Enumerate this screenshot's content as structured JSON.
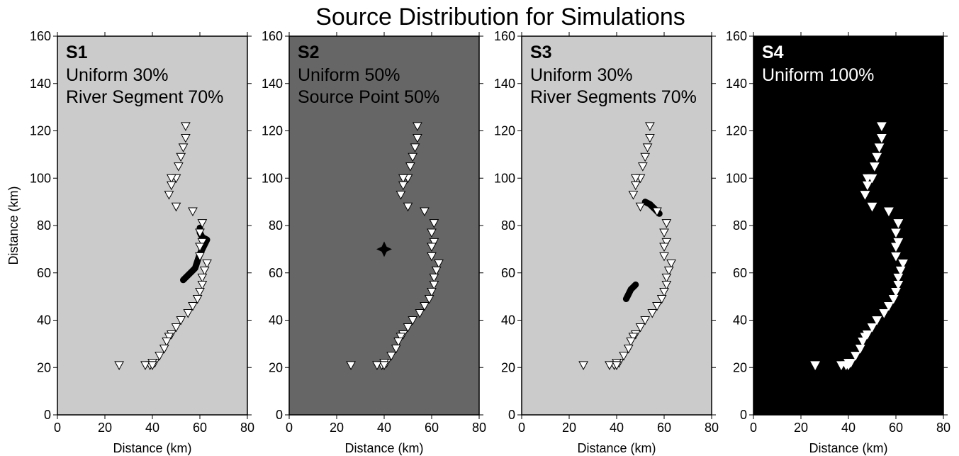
{
  "chart_data": {
    "type": "scatter",
    "title": "Source Distribution for Simulations",
    "xlabel": "Distance (km)",
    "ylabel": "Distance (km)",
    "xlim": [
      0,
      80
    ],
    "ylim": [
      0,
      160
    ],
    "xticks": [
      0,
      20,
      40,
      60,
      80
    ],
    "yticks": [
      0,
      20,
      40,
      60,
      80,
      100,
      120,
      140,
      160
    ],
    "stations": {
      "marker": "inverted-triangle",
      "x": [
        54,
        54,
        53,
        52,
        51,
        50,
        48,
        48,
        47,
        50,
        57,
        61,
        60,
        61,
        60,
        60,
        63,
        62,
        61,
        61,
        60,
        59,
        57,
        55,
        52,
        50,
        48,
        47,
        46,
        45,
        43,
        41,
        40,
        39,
        37,
        40,
        26
      ],
      "y": [
        122,
        117,
        113,
        109,
        105,
        100,
        100,
        97,
        93,
        88,
        86,
        81,
        77,
        73,
        71,
        67,
        64,
        61,
        58,
        55,
        52,
        49,
        46,
        43,
        40,
        37,
        34,
        33,
        31,
        28,
        25,
        22,
        22,
        21,
        21,
        21,
        21
      ]
    },
    "panels": [
      {
        "label": "S1",
        "lines": [
          "Uniform 30%",
          "River Segment 70%"
        ],
        "background": "#cbcbcb",
        "text_color": "#000000",
        "station_fill": "#ffffff",
        "station_stroke": "#000000",
        "source_segments": [
          [
            [
              60,
              79
            ],
            [
              60,
              77
            ],
            [
              61,
              75
            ],
            [
              63,
              74
            ],
            [
              62,
              72
            ],
            [
              61,
              70
            ],
            [
              60,
              68
            ],
            [
              59,
              65
            ],
            [
              58,
              62
            ],
            [
              57,
              61
            ],
            [
              55,
              59
            ],
            [
              53,
              57
            ]
          ]
        ],
        "source_points": []
      },
      {
        "label": "S2",
        "lines": [
          "Uniform 50%",
          "Source Point 50%"
        ],
        "background": "#666666",
        "text_color": "#000000",
        "station_fill": "#ffffff",
        "station_stroke": "#000000",
        "source_segments": [],
        "source_points": [
          [
            40,
            70
          ]
        ]
      },
      {
        "label": "S3",
        "lines": [
          "Uniform 30%",
          "River Segments 70%"
        ],
        "background": "#cbcbcb",
        "text_color": "#000000",
        "station_fill": "#ffffff",
        "station_stroke": "#000000",
        "source_segments": [
          [
            [
              52,
              90
            ],
            [
              54,
              89
            ],
            [
              56,
              87
            ],
            [
              58,
              85
            ]
          ],
          [
            [
              48,
              55
            ],
            [
              46,
              53
            ],
            [
              45,
              51
            ],
            [
              44,
              49
            ]
          ]
        ],
        "source_points": []
      },
      {
        "label": "S4",
        "lines": [
          "Uniform 100%"
        ],
        "background": "#000000",
        "text_color": "#ffffff",
        "station_fill": "#ffffff",
        "station_stroke": "#ffffff",
        "source_segments": [],
        "source_points": []
      }
    ]
  }
}
